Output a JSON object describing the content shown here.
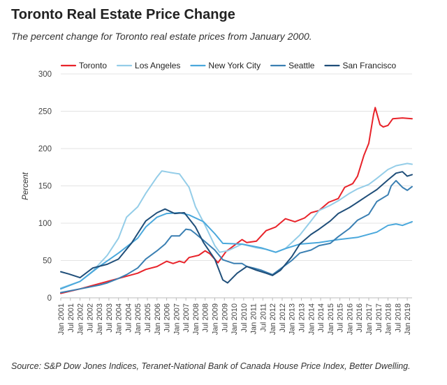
{
  "title": "Toronto Real Estate Price Change",
  "subtitle": "The percent change for Toronto real estate prices from January 2000.",
  "source": "Source: S&P Dow Jones Indices, Teranet-National Bank of Canada House Price Index, Better Dwelling.",
  "chart_data": {
    "type": "line",
    "title": "Toronto Real Estate Price Change",
    "subtitle": "The percent change for Toronto real estate prices from January 2000.",
    "xlabel": "",
    "ylabel": "Percent",
    "ylim": [
      0,
      300
    ],
    "yticks": [
      0,
      50,
      100,
      150,
      200,
      250,
      300
    ],
    "xlim": [
      "2001-01",
      "2019-04"
    ],
    "x_tick_labels": [
      "Jan 2001",
      "Jul 2001",
      "Jan 2002",
      "Jul 2002",
      "Jan 2003",
      "Jul 2003",
      "Jan 2004",
      "Jul 2004",
      "Jan 2005",
      "Jul 2005",
      "Jan 2006",
      "Jul 2006",
      "Jan 2007",
      "Jul 2007",
      "Jan 2008",
      "Jul 2008",
      "Jan 2009",
      "Jul 2009",
      "Jan 2010",
      "Jul 2010",
      "Jan 2011",
      "Jul 2011",
      "Jan 2012",
      "Jul 2012",
      "Jan 2013",
      "Jul 2013",
      "Jan 2014",
      "Jul 2014",
      "Jan 2015",
      "Jul 2015",
      "Jan 2016",
      "Jul 2016",
      "Jan 2017",
      "Jul 2017",
      "Jan 2018",
      "Jul 2018",
      "Jan 2019"
    ],
    "grid": "horizontal",
    "legend_position": "top",
    "series": [
      {
        "name": "Toronto",
        "color": "#e8232a",
        "points": [
          [
            "2001-01",
            6
          ],
          [
            "2002-01",
            12
          ],
          [
            "2003-01",
            19
          ],
          [
            "2004-01",
            26
          ],
          [
            "2005-01",
            33
          ],
          [
            "2005-06",
            38
          ],
          [
            "2006-01",
            42
          ],
          [
            "2006-07",
            49
          ],
          [
            "2006-11",
            46
          ],
          [
            "2007-03",
            49
          ],
          [
            "2007-06",
            47
          ],
          [
            "2007-09",
            54
          ],
          [
            "2008-03",
            57
          ],
          [
            "2008-07",
            63
          ],
          [
            "2008-10",
            59
          ],
          [
            "2009-03",
            47
          ],
          [
            "2009-08",
            62
          ],
          [
            "2010-01",
            70
          ],
          [
            "2010-06",
            78
          ],
          [
            "2010-09",
            74
          ],
          [
            "2011-03",
            76
          ],
          [
            "2011-09",
            90
          ],
          [
            "2012-03",
            95
          ],
          [
            "2012-09",
            106
          ],
          [
            "2013-03",
            102
          ],
          [
            "2013-09",
            107
          ],
          [
            "2014-01",
            114
          ],
          [
            "2014-06",
            117
          ],
          [
            "2014-12",
            128
          ],
          [
            "2015-06",
            133
          ],
          [
            "2015-10",
            148
          ],
          [
            "2016-03",
            153
          ],
          [
            "2016-06",
            163
          ],
          [
            "2016-10",
            191
          ],
          [
            "2017-01",
            207
          ],
          [
            "2017-04",
            246
          ],
          [
            "2017-05",
            255
          ],
          [
            "2017-08",
            232
          ],
          [
            "2017-10",
            229
          ],
          [
            "2018-01",
            231
          ],
          [
            "2018-04",
            240
          ],
          [
            "2018-10",
            241
          ],
          [
            "2019-04",
            240
          ]
        ]
      },
      {
        "name": "Los Angeles",
        "color": "#94cde8",
        "points": [
          [
            "2001-01",
            13
          ],
          [
            "2002-01",
            22
          ],
          [
            "2002-09",
            36
          ],
          [
            "2003-06",
            57
          ],
          [
            "2004-01",
            80
          ],
          [
            "2004-06",
            108
          ],
          [
            "2005-01",
            122
          ],
          [
            "2005-06",
            140
          ],
          [
            "2006-01",
            162
          ],
          [
            "2006-04",
            170
          ],
          [
            "2006-09",
            168
          ],
          [
            "2007-03",
            166
          ],
          [
            "2007-09",
            148
          ],
          [
            "2008-01",
            122
          ],
          [
            "2008-07",
            97
          ],
          [
            "2009-01",
            70
          ],
          [
            "2009-04",
            61
          ],
          [
            "2009-09",
            63
          ],
          [
            "2010-06",
            72
          ],
          [
            "2011-03",
            67
          ],
          [
            "2011-09",
            65
          ],
          [
            "2012-03",
            61
          ],
          [
            "2012-09",
            66
          ],
          [
            "2013-06",
            84
          ],
          [
            "2014-01",
            103
          ],
          [
            "2014-06",
            117
          ],
          [
            "2015-01",
            124
          ],
          [
            "2015-06",
            130
          ],
          [
            "2016-01",
            140
          ],
          [
            "2016-06",
            146
          ],
          [
            "2017-01",
            152
          ],
          [
            "2017-06",
            160
          ],
          [
            "2018-01",
            172
          ],
          [
            "2018-06",
            177
          ],
          [
            "2019-01",
            180
          ],
          [
            "2019-04",
            179
          ]
        ]
      },
      {
        "name": "New York City",
        "color": "#4aa8dc",
        "points": [
          [
            "2001-01",
            12
          ],
          [
            "2002-01",
            22
          ],
          [
            "2003-01",
            42
          ],
          [
            "2004-01",
            60
          ],
          [
            "2005-01",
            80
          ],
          [
            "2005-06",
            95
          ],
          [
            "2006-01",
            108
          ],
          [
            "2006-07",
            113
          ],
          [
            "2007-03",
            114
          ],
          [
            "2007-09",
            111
          ],
          [
            "2008-06",
            102
          ],
          [
            "2009-01",
            86
          ],
          [
            "2009-06",
            73
          ],
          [
            "2010-06",
            72
          ],
          [
            "2011-06",
            67
          ],
          [
            "2012-03",
            61
          ],
          [
            "2012-09",
            66
          ],
          [
            "2013-06",
            72
          ],
          [
            "2014-06",
            74
          ],
          [
            "2015-06",
            78
          ],
          [
            "2016-06",
            81
          ],
          [
            "2017-06",
            88
          ],
          [
            "2018-01",
            97
          ],
          [
            "2018-06",
            99
          ],
          [
            "2018-10",
            97
          ],
          [
            "2019-04",
            102
          ]
        ]
      },
      {
        "name": "Seattle",
        "color": "#3a7fb2",
        "points": [
          [
            "2001-01",
            7
          ],
          [
            "2002-01",
            12
          ],
          [
            "2003-01",
            17
          ],
          [
            "2003-06",
            20
          ],
          [
            "2004-01",
            26
          ],
          [
            "2004-06",
            31
          ],
          [
            "2005-01",
            40
          ],
          [
            "2005-06",
            52
          ],
          [
            "2006-01",
            63
          ],
          [
            "2006-06",
            72
          ],
          [
            "2006-10",
            83
          ],
          [
            "2007-03",
            83
          ],
          [
            "2007-07",
            92
          ],
          [
            "2007-10",
            91
          ],
          [
            "2008-01",
            86
          ],
          [
            "2008-06",
            77
          ],
          [
            "2009-01",
            64
          ],
          [
            "2009-06",
            51
          ],
          [
            "2010-01",
            46
          ],
          [
            "2010-06",
            46
          ],
          [
            "2010-09",
            42
          ],
          [
            "2011-01",
            40
          ],
          [
            "2011-06",
            37
          ],
          [
            "2012-01",
            31
          ],
          [
            "2012-06",
            39
          ],
          [
            "2013-01",
            50
          ],
          [
            "2013-06",
            60
          ],
          [
            "2014-01",
            64
          ],
          [
            "2014-06",
            70
          ],
          [
            "2015-01",
            73
          ],
          [
            "2015-06",
            82
          ],
          [
            "2016-01",
            93
          ],
          [
            "2016-06",
            104
          ],
          [
            "2017-01",
            112
          ],
          [
            "2017-06",
            129
          ],
          [
            "2018-01",
            138
          ],
          [
            "2018-03",
            150
          ],
          [
            "2018-06",
            157
          ],
          [
            "2018-10",
            148
          ],
          [
            "2019-01",
            144
          ],
          [
            "2019-04",
            149
          ]
        ]
      },
      {
        "name": "San Francisco",
        "color": "#1f4e79",
        "points": [
          [
            "2001-01",
            35
          ],
          [
            "2001-06",
            32
          ],
          [
            "2002-01",
            27
          ],
          [
            "2002-09",
            40
          ],
          [
            "2003-06",
            45
          ],
          [
            "2004-01",
            52
          ],
          [
            "2004-09",
            73
          ],
          [
            "2005-06",
            103
          ],
          [
            "2006-01",
            114
          ],
          [
            "2006-06",
            119
          ],
          [
            "2006-12",
            113
          ],
          [
            "2007-06",
            114
          ],
          [
            "2008-01",
            95
          ],
          [
            "2008-06",
            74
          ],
          [
            "2009-01",
            52
          ],
          [
            "2009-06",
            24
          ],
          [
            "2009-09",
            20
          ],
          [
            "2010-03",
            33
          ],
          [
            "2010-09",
            42
          ],
          [
            "2011-03",
            37
          ],
          [
            "2011-09",
            33
          ],
          [
            "2012-01",
            30
          ],
          [
            "2012-06",
            37
          ],
          [
            "2013-01",
            55
          ],
          [
            "2013-06",
            72
          ],
          [
            "2014-01",
            85
          ],
          [
            "2014-06",
            92
          ],
          [
            "2015-01",
            103
          ],
          [
            "2015-06",
            113
          ],
          [
            "2016-01",
            121
          ],
          [
            "2016-06",
            128
          ],
          [
            "2017-01",
            138
          ],
          [
            "2017-06",
            145
          ],
          [
            "2018-01",
            158
          ],
          [
            "2018-06",
            167
          ],
          [
            "2018-10",
            169
          ],
          [
            "2019-01",
            163
          ],
          [
            "2019-04",
            165
          ]
        ]
      }
    ]
  }
}
